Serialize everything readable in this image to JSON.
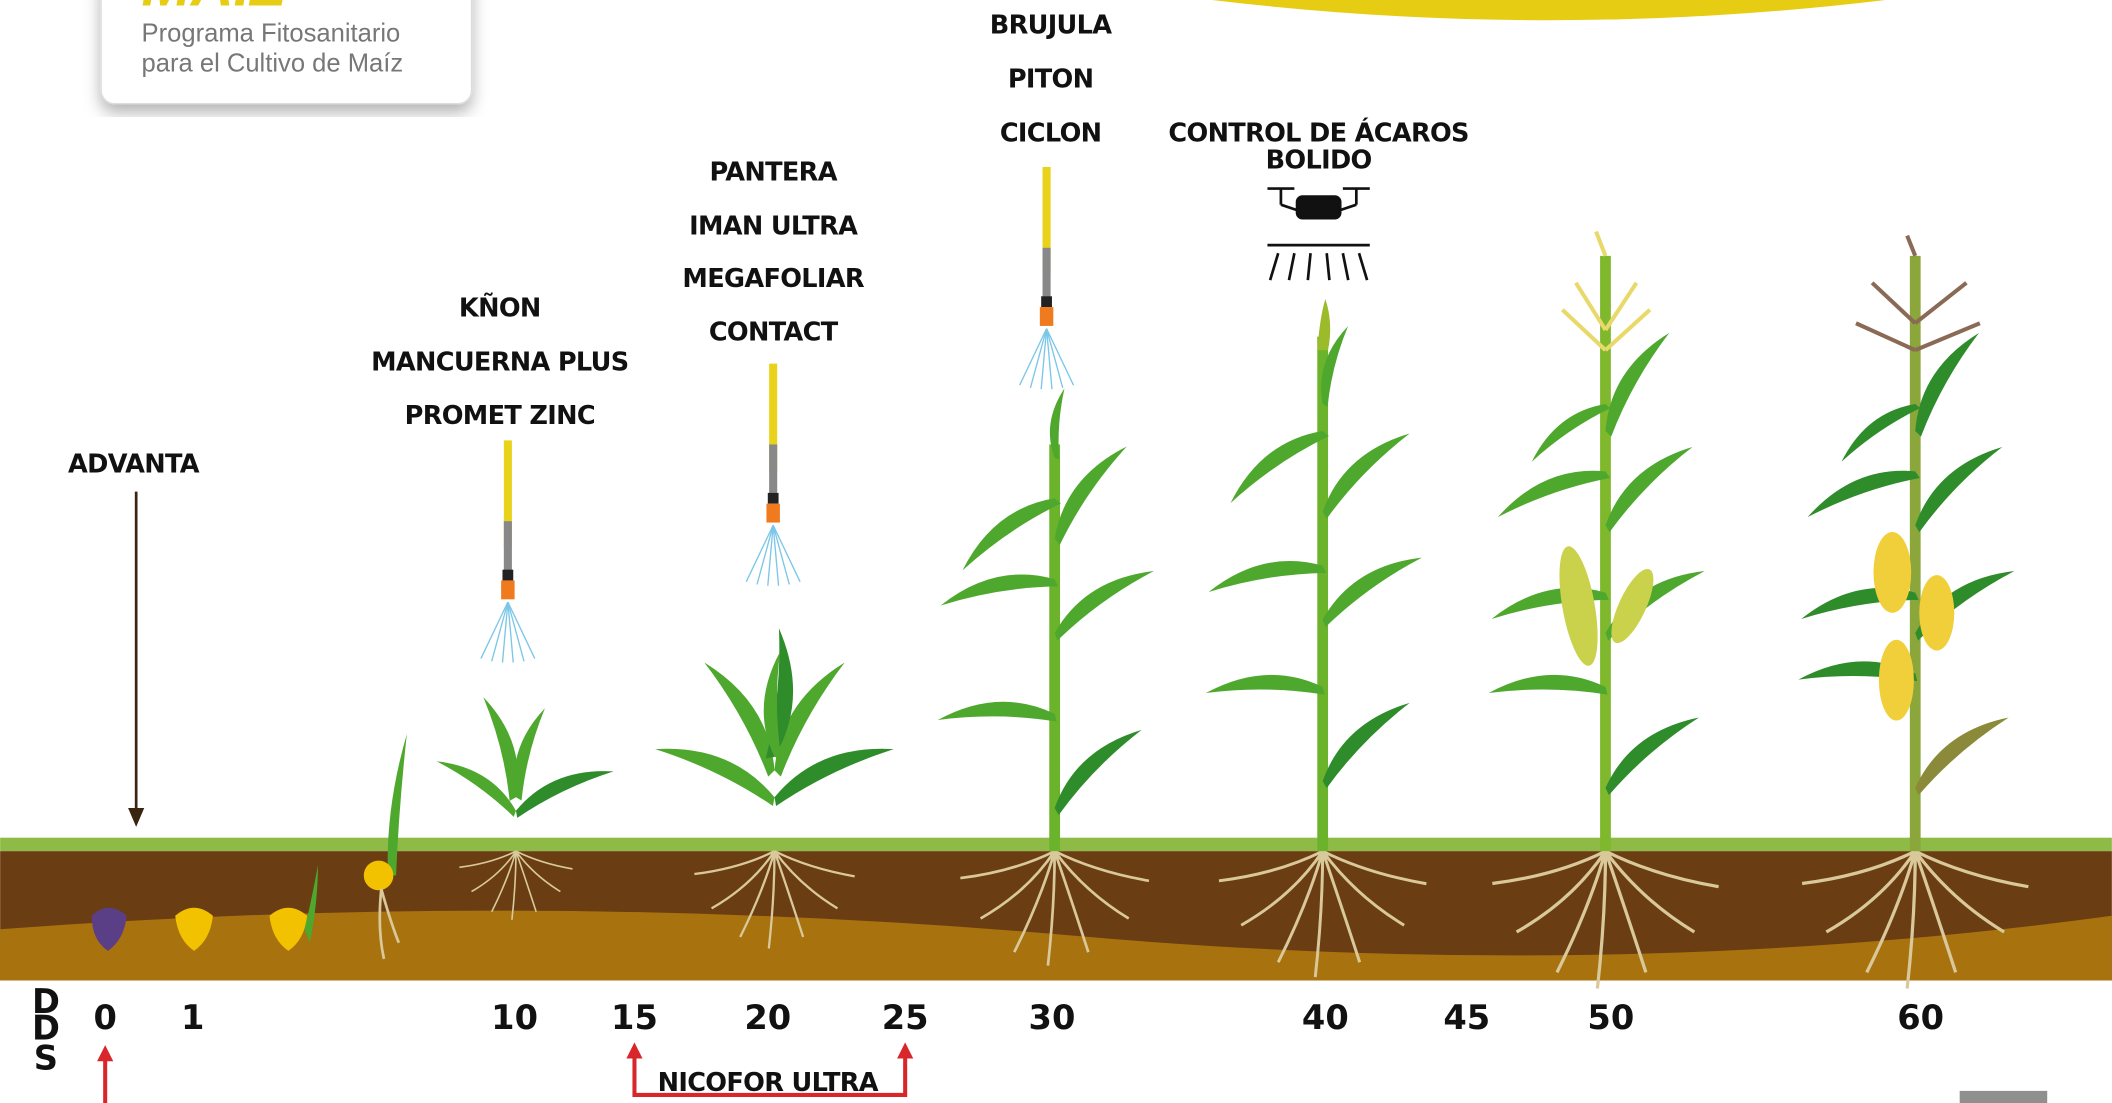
{
  "header": {
    "brand": "MAÍZ",
    "subtitle_line1": "Programa Fitosanitario",
    "subtitle_line2": "para el Cultivo de Maíz"
  },
  "applications": [
    {
      "products": [
        "ADVANTA"
      ]
    },
    {
      "products": [
        "KÑON",
        "MANCUERNA PLUS",
        "PROMET ZINC"
      ]
    },
    {
      "products": [
        "PANTERA",
        "IMAN ULTRA",
        "MEGAFOLIAR",
        "CONTACT"
      ]
    },
    {
      "products": [
        "BRUJULA",
        "PITON",
        "CICLON"
      ]
    },
    {
      "products": [
        "CONTROL DE ÁCAROS",
        "BOLIDO"
      ]
    }
  ],
  "axis": {
    "letters": [
      "D",
      "D",
      "S"
    ],
    "ticks": [
      0,
      1,
      10,
      15,
      20,
      25,
      30,
      40,
      45,
      50,
      60
    ]
  },
  "range_application": {
    "label": "NICOFOR ULTRA"
  }
}
